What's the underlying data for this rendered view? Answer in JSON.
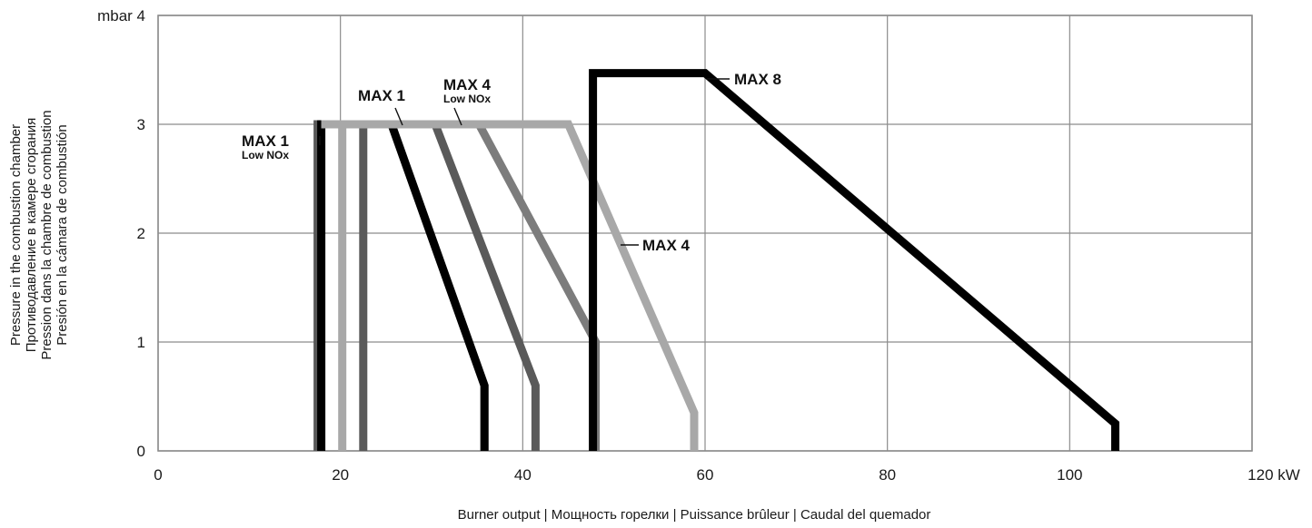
{
  "chart_data": {
    "type": "line",
    "title": "",
    "xlabel": "Burner output | Мощность горелки | Puissance brûleur | Caudal del quemador",
    "ylabel_lines": [
      "Pressure in the combustion chamber",
      "Противодавление в камере сгорания",
      "Pression dans la chambre de combustion",
      "Presión en la cámara de combustión"
    ],
    "xlim": [
      0,
      120
    ],
    "ylim": [
      0,
      4
    ],
    "grid": true,
    "x_ticks": [
      "0",
      "20",
      "40",
      "60",
      "80",
      "100",
      "120 kW"
    ],
    "y_ticks": [
      "0",
      "1",
      "2",
      "3",
      "mbar 4"
    ],
    "series": [
      {
        "name": "MAX 1 Low NOx",
        "color": "#5a5a5a",
        "x": [
          17.5,
          17.5,
          22.5,
          22.5
        ],
        "y": [
          0,
          3.0,
          3.0,
          0
        ]
      },
      {
        "name": "MAX 1",
        "color": "#a8a8a8",
        "x": [
          20.2,
          20.2,
          25.6,
          35.8,
          35.8
        ],
        "y": [
          0,
          3.0,
          3.0,
          0.6,
          0
        ]
      },
      {
        "name": "MAX 1",
        "color": "#000000",
        "x": [
          17.9,
          17.9,
          25.6,
          35.8,
          35.8
        ],
        "y": [
          0,
          3.0,
          3.0,
          0.6,
          0
        ]
      },
      {
        "name": "MAX 4 Low NOx",
        "color": "#5a5a5a",
        "x": [
          17.9,
          30.4,
          41.4,
          41.4
        ],
        "y": [
          3.0,
          3.0,
          0.6,
          0
        ]
      },
      {
        "name": "MAX 4",
        "color": "#7c7c7c",
        "x": [
          17.9,
          35.2,
          48.0,
          48.0
        ],
        "y": [
          3.0,
          3.0,
          1.0,
          0
        ]
      },
      {
        "name": "MAX 4",
        "color": "#a8a8a8",
        "x": [
          17.9,
          45.0,
          58.8,
          58.8
        ],
        "y": [
          3.0,
          3.0,
          0.35,
          0
        ]
      },
      {
        "name": "MAX 8",
        "color": "#000000",
        "x": [
          47.7,
          47.7,
          60.0,
          105.0,
          105.0
        ],
        "y": [
          0,
          3.47,
          3.47,
          0.25,
          0
        ]
      }
    ],
    "annotations": [
      {
        "main": "MAX 1",
        "sub": "Low NOx"
      },
      {
        "main": "MAX 1",
        "sub": ""
      },
      {
        "main": "MAX 4",
        "sub": "Low NOx"
      },
      {
        "main": "MAX 4",
        "sub": ""
      },
      {
        "main": "MAX 8",
        "sub": ""
      }
    ]
  }
}
